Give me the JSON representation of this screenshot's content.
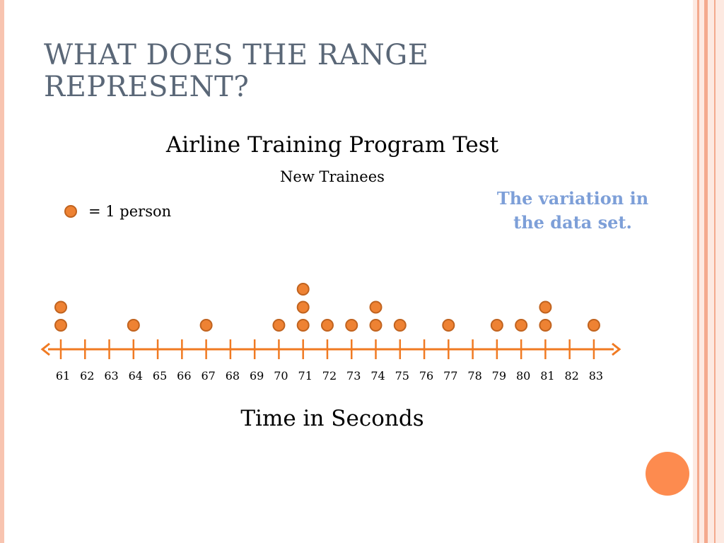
{
  "slide": {
    "title": "WHAT DOES THE RANGE REPRESENT?"
  },
  "callout": "The variation in the data set.",
  "legend": {
    "label": "= 1 person"
  },
  "colors": {
    "title": "#5a6777",
    "dot_fill": "#ee8233",
    "dot_stroke": "#c0631f",
    "axis": "#f07a22",
    "callout": "#7d9fd8",
    "decoration": "#fd8b4f"
  },
  "chart_data": {
    "type": "dot-plot",
    "title": "Airline Training Program Test",
    "subtitle": "New Trainees",
    "xlabel": "Time in Seconds",
    "xlim": [
      61,
      83
    ],
    "ticks": [
      61,
      62,
      63,
      64,
      65,
      66,
      67,
      68,
      69,
      70,
      71,
      72,
      73,
      74,
      75,
      76,
      77,
      78,
      79,
      80,
      81,
      82,
      83
    ],
    "unit": "1 dot = 1 person",
    "points": [
      {
        "x": 61,
        "count": 2
      },
      {
        "x": 64,
        "count": 1
      },
      {
        "x": 67,
        "count": 1
      },
      {
        "x": 70,
        "count": 1
      },
      {
        "x": 71,
        "count": 3
      },
      {
        "x": 72,
        "count": 1
      },
      {
        "x": 73,
        "count": 1
      },
      {
        "x": 74,
        "count": 2
      },
      {
        "x": 75,
        "count": 1
      },
      {
        "x": 77,
        "count": 1
      },
      {
        "x": 79,
        "count": 1
      },
      {
        "x": 80,
        "count": 1
      },
      {
        "x": 81,
        "count": 2
      },
      {
        "x": 83,
        "count": 1
      }
    ]
  }
}
